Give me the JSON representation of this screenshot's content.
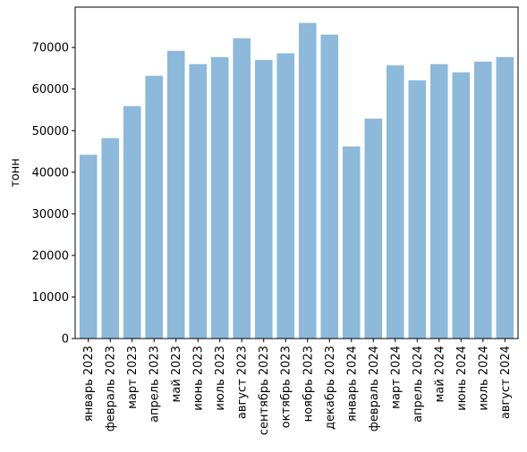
{
  "chart_data": {
    "type": "bar",
    "categories": [
      "январь 2023",
      "февраль 2023",
      "март 2023",
      "апрель 2023",
      "май 2023",
      "июнь 2023",
      "июль 2023",
      "август 2023",
      "сентябрь 2023",
      "октябрь 2023",
      "ноябрь 2023",
      "декабрь 2023",
      "январь 2024",
      "февраль 2024",
      "март 2024",
      "апрель 2024",
      "май 2024",
      "июнь 2024",
      "июль 2024",
      "август 2024"
    ],
    "values": [
      44200,
      48200,
      55900,
      63200,
      69200,
      66000,
      67700,
      72200,
      67000,
      68600,
      75900,
      73100,
      46200,
      52900,
      65700,
      62100,
      66000,
      64000,
      66600,
      67700
    ],
    "ylabel": "тонн",
    "yticks": [
      0,
      10000,
      20000,
      30000,
      40000,
      50000,
      60000,
      70000
    ],
    "ylim": [
      0,
      79700
    ],
    "grid": false,
    "bar_color": "#8db9da"
  }
}
